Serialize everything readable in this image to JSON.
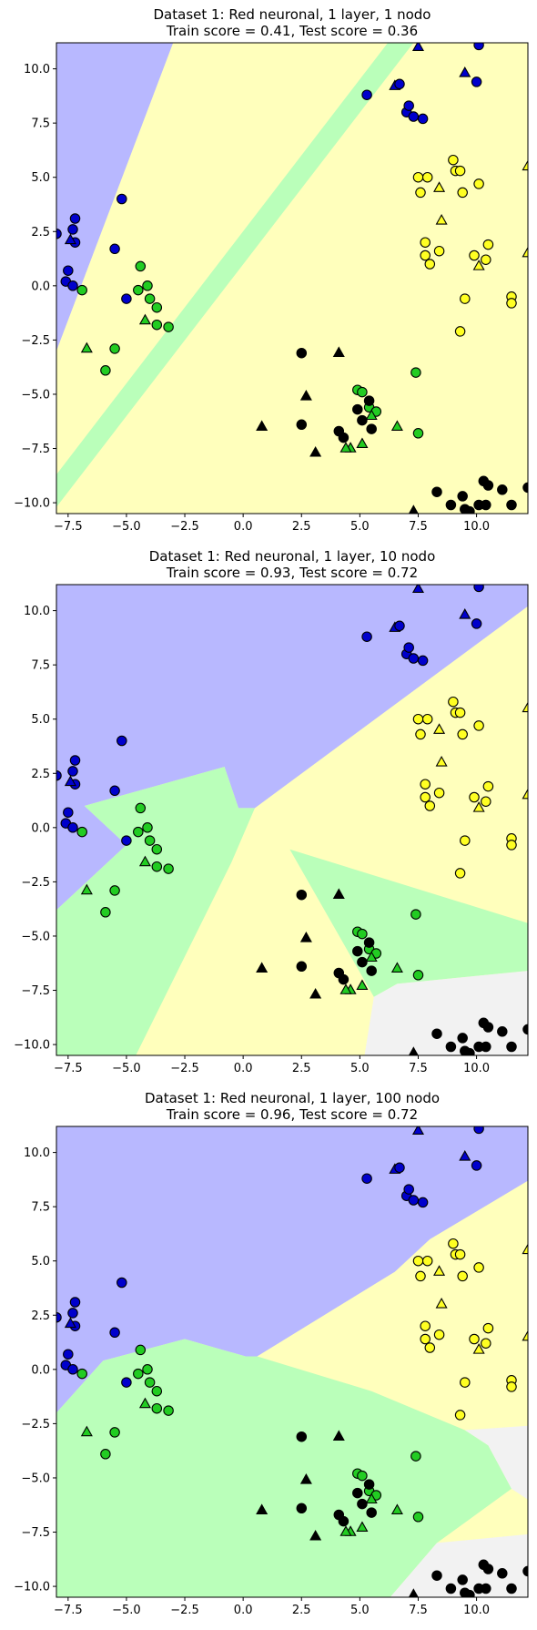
{
  "colors": {
    "region_blue": "#b8b8ff",
    "region_yellow": "#ffffbc",
    "region_green": "#baffba",
    "region_gray": "#f2f2f2",
    "pt_blue": "#0000cc",
    "pt_yellow": "#ffff22",
    "pt_green": "#22cc22",
    "pt_black": "#000000"
  },
  "chart_data": [
    {
      "type": "scatter",
      "title": "Dataset 1: Red neuronal, 1 layer, 1 nodo",
      "subtitle": "Train score = 0.41, Test score = 0.36",
      "xlim": [
        -8.0,
        12.2
      ],
      "ylim": [
        -10.5,
        11.2
      ],
      "xticks": [
        -7.5,
        -5.0,
        -2.5,
        0.0,
        2.5,
        5.0,
        7.5,
        10.0
      ],
      "yticks": [
        -10.0,
        -7.5,
        -5.0,
        -2.5,
        0.0,
        2.5,
        5.0,
        7.5,
        10.0
      ],
      "xtick_labels": [
        "−7.5",
        "−5.0",
        "−2.5",
        "0.0",
        "2.5",
        "5.0",
        "7.5",
        "10.0"
      ],
      "ytick_labels": [
        "−10.0",
        "−7.5",
        "−5.0",
        "−2.5",
        "0.0",
        "2.5",
        "5.0",
        "7.5",
        "10.0"
      ],
      "background": "yellow",
      "regions": [
        {
          "class": "blue",
          "points": [
            [
              -8,
              11.2
            ],
            [
              -3.0,
              11.2
            ],
            [
              -8,
              -3.0
            ]
          ]
        },
        {
          "class": "green",
          "points": [
            [
              6.2,
              11.2
            ],
            [
              7.3,
              11.2
            ],
            [
              -8,
              -10.2
            ],
            [
              -8,
              -8.7
            ]
          ]
        }
      ]
    },
    {
      "type": "scatter",
      "title": "Dataset 1: Red neuronal, 1 layer, 10 nodo",
      "subtitle": "Train score = 0.93, Test score = 0.72",
      "xlim": [
        -8.0,
        12.2
      ],
      "ylim": [
        -10.5,
        11.2
      ],
      "xticks": [
        -7.5,
        -5.0,
        -2.5,
        0.0,
        2.5,
        5.0,
        7.5,
        10.0
      ],
      "yticks": [
        -10.0,
        -7.5,
        -5.0,
        -2.5,
        0.0,
        2.5,
        5.0,
        7.5,
        10.0
      ],
      "xtick_labels": [
        "−7.5",
        "−5.0",
        "−2.5",
        "0.0",
        "2.5",
        "5.0",
        "7.5",
        "10.0"
      ],
      "ytick_labels": [
        "−10.0",
        "−7.5",
        "−5.0",
        "−2.5",
        "0.0",
        "2.5",
        "5.0",
        "7.5",
        "10.0"
      ],
      "background": "yellow",
      "regions": [
        {
          "class": "blue",
          "points": [
            [
              -8,
              11.2
            ],
            [
              12.2,
              11.2
            ],
            [
              12.2,
              10.2
            ],
            [
              0.5,
              0.9
            ],
            [
              -0.2,
              0.9
            ],
            [
              -0.8,
              2.8
            ],
            [
              -6.8,
              1.0
            ],
            [
              -5.0,
              -0.8
            ],
            [
              -8,
              -3.8
            ]
          ]
        },
        {
          "class": "green",
          "points": [
            [
              -8,
              -3.8
            ],
            [
              -5.0,
              -0.8
            ],
            [
              -6.8,
              1.0
            ],
            [
              -0.8,
              2.8
            ],
            [
              -0.2,
              0.9
            ],
            [
              0.5,
              0.9
            ],
            [
              -0.5,
              -1.6
            ],
            [
              -4.6,
              -10.5
            ],
            [
              -8,
              -10.5
            ]
          ]
        },
        {
          "class": "green",
          "points": [
            [
              2.0,
              -1.0
            ],
            [
              12.2,
              -4.4
            ],
            [
              12.2,
              -6.6
            ],
            [
              6.6,
              -7.2
            ],
            [
              5.6,
              -7.8
            ]
          ]
        },
        {
          "class": "gray",
          "points": [
            [
              5.2,
              -10.5
            ],
            [
              5.6,
              -7.8
            ],
            [
              6.6,
              -7.2
            ],
            [
              12.2,
              -6.6
            ],
            [
              12.2,
              -10.5
            ]
          ]
        }
      ]
    },
    {
      "type": "scatter",
      "title": "Dataset 1: Red neuronal, 1 layer, 100 nodo",
      "subtitle": "Train score = 0.96, Test score = 0.72",
      "xlim": [
        -8.0,
        12.2
      ],
      "ylim": [
        -10.5,
        11.2
      ],
      "xticks": [
        -7.5,
        -5.0,
        -2.5,
        0.0,
        2.5,
        5.0,
        7.5,
        10.0
      ],
      "yticks": [
        -10.0,
        -7.5,
        -5.0,
        -2.5,
        0.0,
        2.5,
        5.0,
        7.5,
        10.0
      ],
      "xtick_labels": [
        "−7.5",
        "−5.0",
        "−2.5",
        "0.0",
        "2.5",
        "5.0",
        "7.5",
        "10.0"
      ],
      "ytick_labels": [
        "−10.0",
        "−7.5",
        "−5.0",
        "−2.5",
        "0.0",
        "2.5",
        "5.0",
        "7.5",
        "10.0"
      ],
      "background": "yellow",
      "regions": [
        {
          "class": "blue",
          "points": [
            [
              -8,
              11.2
            ],
            [
              12.2,
              11.2
            ],
            [
              12.2,
              8.7
            ],
            [
              8.0,
              6.0
            ],
            [
              6.5,
              4.5
            ],
            [
              0.6,
              0.6
            ],
            [
              0.1,
              0.6
            ],
            [
              -2.5,
              1.4
            ],
            [
              -6.0,
              0.4
            ],
            [
              -8,
              -2.0
            ]
          ]
        },
        {
          "class": "green",
          "points": [
            [
              -8,
              -2.0
            ],
            [
              -6.0,
              0.4
            ],
            [
              -2.5,
              1.4
            ],
            [
              0.1,
              0.6
            ],
            [
              0.6,
              0.6
            ],
            [
              5.5,
              -1.0
            ],
            [
              9.5,
              -2.8
            ],
            [
              10.5,
              -3.5
            ],
            [
              11.5,
              -5.5
            ],
            [
              8.3,
              -8.0
            ],
            [
              7.5,
              -9.0
            ],
            [
              6.3,
              -10.5
            ],
            [
              -4.6,
              -10.5
            ],
            [
              -3.0,
              -3.5
            ],
            [
              -1.5,
              -1.0
            ],
            [
              -0.5,
              -0.2
            ],
            [
              0.8,
              -0.7
            ],
            [
              1.5,
              -2.2
            ],
            [
              2.0,
              -3.0
            ],
            [
              3.5,
              -3.2
            ],
            [
              5.2,
              -6.0
            ],
            [
              5.4,
              -7.5
            ],
            [
              3.8,
              -9.0
            ],
            [
              3.0,
              -9.2
            ],
            [
              3.2,
              -10.5
            ],
            [
              -4.6,
              -10.5
            ],
            [
              -8,
              -10.5
            ]
          ]
        },
        {
          "class": "gray",
          "points": [
            [
              12.2,
              -2.6
            ],
            [
              9.5,
              -2.8
            ],
            [
              10.5,
              -3.5
            ],
            [
              11.5,
              -5.5
            ],
            [
              12.2,
              -6.0
            ]
          ]
        },
        {
          "class": "gray",
          "points": [
            [
              6.3,
              -10.5
            ],
            [
              7.5,
              -9.0
            ],
            [
              8.3,
              -8.0
            ],
            [
              12.2,
              -7.6
            ],
            [
              12.2,
              -10.5
            ]
          ]
        }
      ],
      "green_band_note": ""
    }
  ],
  "points": [
    {
      "x": -8.0,
      "y": 2.4,
      "c": "blue",
      "m": "o"
    },
    {
      "x": -7.2,
      "y": 3.1,
      "c": "blue",
      "m": "o"
    },
    {
      "x": -7.3,
      "y": 2.6,
      "c": "blue",
      "m": "o"
    },
    {
      "x": -7.2,
      "y": 2.0,
      "c": "blue",
      "m": "o"
    },
    {
      "x": -7.4,
      "y": 2.1,
      "c": "blue",
      "m": "^"
    },
    {
      "x": -7.5,
      "y": 0.7,
      "c": "blue",
      "m": "o"
    },
    {
      "x": -7.6,
      "y": 0.2,
      "c": "blue",
      "m": "o"
    },
    {
      "x": -7.3,
      "y": 0.0,
      "c": "blue",
      "m": "o"
    },
    {
      "x": -5.5,
      "y": 1.7,
      "c": "blue",
      "m": "o"
    },
    {
      "x": -5.2,
      "y": 4.0,
      "c": "blue",
      "m": "o"
    },
    {
      "x": -5.0,
      "y": -0.6,
      "c": "blue",
      "m": "o"
    },
    {
      "x": 5.3,
      "y": 8.8,
      "c": "blue",
      "m": "o"
    },
    {
      "x": 6.5,
      "y": 9.2,
      "c": "blue",
      "m": "^"
    },
    {
      "x": 6.7,
      "y": 9.3,
      "c": "blue",
      "m": "o"
    },
    {
      "x": 7.0,
      "y": 8.0,
      "c": "blue",
      "m": "o"
    },
    {
      "x": 7.1,
      "y": 8.3,
      "c": "blue",
      "m": "o"
    },
    {
      "x": 7.3,
      "y": 7.8,
      "c": "blue",
      "m": "o"
    },
    {
      "x": 7.7,
      "y": 7.7,
      "c": "blue",
      "m": "o"
    },
    {
      "x": 7.5,
      "y": 11.0,
      "c": "blue",
      "m": "^"
    },
    {
      "x": 9.5,
      "y": 9.8,
      "c": "blue",
      "m": "^"
    },
    {
      "x": 10.0,
      "y": 9.4,
      "c": "blue",
      "m": "o"
    },
    {
      "x": 10.1,
      "y": 11.1,
      "c": "blue",
      "m": "o"
    },
    {
      "x": -6.9,
      "y": -0.2,
      "c": "green",
      "m": "o"
    },
    {
      "x": -6.7,
      "y": -2.9,
      "c": "green",
      "m": "^"
    },
    {
      "x": -5.9,
      "y": -3.9,
      "c": "green",
      "m": "o"
    },
    {
      "x": -5.5,
      "y": -2.9,
      "c": "green",
      "m": "o"
    },
    {
      "x": -4.5,
      "y": -0.2,
      "c": "green",
      "m": "o"
    },
    {
      "x": -4.4,
      "y": 0.9,
      "c": "green",
      "m": "o"
    },
    {
      "x": -4.1,
      "y": 0.0,
      "c": "green",
      "m": "o"
    },
    {
      "x": -4.0,
      "y": -0.6,
      "c": "green",
      "m": "o"
    },
    {
      "x": -4.2,
      "y": -1.6,
      "c": "green",
      "m": "^"
    },
    {
      "x": -3.7,
      "y": -1.0,
      "c": "green",
      "m": "o"
    },
    {
      "x": -3.7,
      "y": -1.8,
      "c": "green",
      "m": "o"
    },
    {
      "x": -3.2,
      "y": -1.9,
      "c": "green",
      "m": "o"
    },
    {
      "x": 4.9,
      "y": -4.8,
      "c": "green",
      "m": "o"
    },
    {
      "x": 5.1,
      "y": -4.9,
      "c": "green",
      "m": "o"
    },
    {
      "x": 5.4,
      "y": -5.6,
      "c": "green",
      "m": "o"
    },
    {
      "x": 5.7,
      "y": -5.8,
      "c": "green",
      "m": "o"
    },
    {
      "x": 5.5,
      "y": -6.0,
      "c": "green",
      "m": "^"
    },
    {
      "x": 5.1,
      "y": -7.3,
      "c": "green",
      "m": "^"
    },
    {
      "x": 4.6,
      "y": -7.5,
      "c": "green",
      "m": "^"
    },
    {
      "x": 4.4,
      "y": -7.5,
      "c": "green",
      "m": "^"
    },
    {
      "x": 6.6,
      "y": -6.5,
      "c": "green",
      "m": "^"
    },
    {
      "x": 7.4,
      "y": -4.0,
      "c": "green",
      "m": "o"
    },
    {
      "x": 7.5,
      "y": -6.8,
      "c": "green",
      "m": "o"
    },
    {
      "x": 7.5,
      "y": 5.0,
      "c": "yellow",
      "m": "o"
    },
    {
      "x": 7.9,
      "y": 5.0,
      "c": "yellow",
      "m": "o"
    },
    {
      "x": 7.6,
      "y": 4.3,
      "c": "yellow",
      "m": "o"
    },
    {
      "x": 8.4,
      "y": 4.5,
      "c": "yellow",
      "m": "^"
    },
    {
      "x": 8.5,
      "y": 3.0,
      "c": "yellow",
      "m": "^"
    },
    {
      "x": 7.8,
      "y": 2.0,
      "c": "yellow",
      "m": "o"
    },
    {
      "x": 8.4,
      "y": 1.6,
      "c": "yellow",
      "m": "o"
    },
    {
      "x": 7.8,
      "y": 1.4,
      "c": "yellow",
      "m": "o"
    },
    {
      "x": 8.0,
      "y": 1.0,
      "c": "yellow",
      "m": "o"
    },
    {
      "x": 9.0,
      "y": 5.8,
      "c": "yellow",
      "m": "o"
    },
    {
      "x": 9.1,
      "y": 5.3,
      "c": "yellow",
      "m": "o"
    },
    {
      "x": 9.3,
      "y": 5.3,
      "c": "yellow",
      "m": "o"
    },
    {
      "x": 9.4,
      "y": 4.3,
      "c": "yellow",
      "m": "o"
    },
    {
      "x": 10.1,
      "y": 4.7,
      "c": "yellow",
      "m": "o"
    },
    {
      "x": 9.9,
      "y": 1.4,
      "c": "yellow",
      "m": "o"
    },
    {
      "x": 10.1,
      "y": 0.9,
      "c": "yellow",
      "m": "^"
    },
    {
      "x": 10.5,
      "y": 1.9,
      "c": "yellow",
      "m": "o"
    },
    {
      "x": 10.4,
      "y": 1.2,
      "c": "yellow",
      "m": "o"
    },
    {
      "x": 9.5,
      "y": -0.6,
      "c": "yellow",
      "m": "o"
    },
    {
      "x": 9.3,
      "y": -2.1,
      "c": "yellow",
      "m": "o"
    },
    {
      "x": 11.5,
      "y": -0.5,
      "c": "yellow",
      "m": "o"
    },
    {
      "x": 11.5,
      "y": -0.8,
      "c": "yellow",
      "m": "o"
    },
    {
      "x": 12.2,
      "y": 5.5,
      "c": "yellow",
      "m": "^"
    },
    {
      "x": 12.2,
      "y": 1.5,
      "c": "yellow",
      "m": "^"
    },
    {
      "x": 0.8,
      "y": -6.5,
      "c": "black",
      "m": "^"
    },
    {
      "x": 2.5,
      "y": -3.1,
      "c": "black",
      "m": "o"
    },
    {
      "x": 2.5,
      "y": -6.4,
      "c": "black",
      "m": "o"
    },
    {
      "x": 2.7,
      "y": -5.1,
      "c": "black",
      "m": "^"
    },
    {
      "x": 3.1,
      "y": -7.7,
      "c": "black",
      "m": "^"
    },
    {
      "x": 4.1,
      "y": -3.1,
      "c": "black",
      "m": "^"
    },
    {
      "x": 4.1,
      "y": -6.7,
      "c": "black",
      "m": "o"
    },
    {
      "x": 4.3,
      "y": -7.0,
      "c": "black",
      "m": "o"
    },
    {
      "x": 4.9,
      "y": -5.7,
      "c": "black",
      "m": "o"
    },
    {
      "x": 5.1,
      "y": -6.2,
      "c": "black",
      "m": "o"
    },
    {
      "x": 5.4,
      "y": -5.3,
      "c": "black",
      "m": "o"
    },
    {
      "x": 5.5,
      "y": -6.6,
      "c": "black",
      "m": "o"
    },
    {
      "x": 7.3,
      "y": -10.4,
      "c": "black",
      "m": "^"
    },
    {
      "x": 8.3,
      "y": -9.5,
      "c": "black",
      "m": "o"
    },
    {
      "x": 8.9,
      "y": -10.1,
      "c": "black",
      "m": "o"
    },
    {
      "x": 9.4,
      "y": -9.7,
      "c": "black",
      "m": "o"
    },
    {
      "x": 9.5,
      "y": -10.3,
      "c": "black",
      "m": "o"
    },
    {
      "x": 9.7,
      "y": -10.4,
      "c": "black",
      "m": "o"
    },
    {
      "x": 10.3,
      "y": -9.0,
      "c": "black",
      "m": "o"
    },
    {
      "x": 10.5,
      "y": -9.2,
      "c": "black",
      "m": "o"
    },
    {
      "x": 10.1,
      "y": -10.1,
      "c": "black",
      "m": "o"
    },
    {
      "x": 10.4,
      "y": -10.1,
      "c": "black",
      "m": "o"
    },
    {
      "x": 11.5,
      "y": -10.1,
      "c": "black",
      "m": "o"
    },
    {
      "x": 11.1,
      "y": -9.4,
      "c": "black",
      "m": "o"
    },
    {
      "x": 12.2,
      "y": -9.3,
      "c": "black",
      "m": "o"
    }
  ]
}
